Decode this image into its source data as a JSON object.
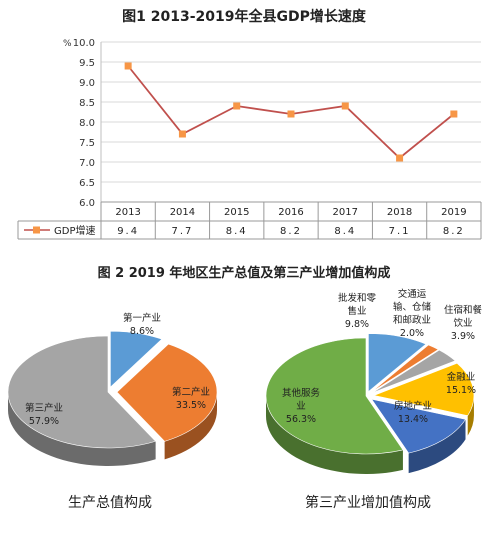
{
  "figure1": {
    "title": "图1   2013-2019年全县GDP增长速度",
    "unit": "%",
    "chart_data": {
      "type": "line",
      "categories": [
        "2013",
        "2014",
        "2015",
        "2016",
        "2017",
        "2018",
        "2019"
      ],
      "series": [
        {
          "name": "GDP增速",
          "values": [
            9.4,
            7.7,
            8.4,
            8.2,
            8.4,
            7.1,
            8.2
          ]
        }
      ],
      "value_labels": [
        "9.4",
        "7.7",
        "8.4",
        "8.2",
        "8.4",
        "7.1",
        "8.2"
      ],
      "ylim": [
        6.0,
        10.0
      ],
      "yticks": [
        6.0,
        6.5,
        7.0,
        7.5,
        8.0,
        8.5,
        9.0,
        9.5,
        10.0
      ],
      "ytick_labels": [
        "6.0",
        "6.5",
        "7.0",
        "7.5",
        "8.0",
        "8.5",
        "9.0",
        "9.5",
        "10.0"
      ],
      "line_color": "#c0504d",
      "marker_color": "#f79646"
    }
  },
  "figure2": {
    "title": "图 2    2019 年地区生产总值及第三产业增加值构成",
    "left": {
      "caption": "生产总值构成",
      "chart_data": {
        "type": "pie",
        "slices": [
          {
            "label": "第一产业",
            "pct": "8.6%",
            "value": 8.6,
            "color": "#5b9bd5"
          },
          {
            "label": "第二产业",
            "pct": "33.5%",
            "value": 33.5,
            "color": "#ed7d31"
          },
          {
            "label": "第三产业",
            "pct": "57.9%",
            "value": 57.9,
            "color": "#a5a5a5"
          }
        ]
      }
    },
    "right": {
      "caption": "第三产业增加值构成",
      "chart_data": {
        "type": "pie",
        "slices": [
          {
            "label": "批发和零售业",
            "pct": "9.8%",
            "value": 9.8,
            "color": "#5b9bd5"
          },
          {
            "label": "交通运输、仓储和邮政业",
            "pct": "2.0%",
            "value": 2.0,
            "color": "#ed7d31"
          },
          {
            "label": "住宿和餐饮业",
            "pct": "3.9%",
            "value": 3.9,
            "color": "#a5a5a5"
          },
          {
            "label": "金融业",
            "pct": "15.1%",
            "value": 15.1,
            "color": "#ffc000"
          },
          {
            "label": "房地产业",
            "pct": "13.4%",
            "value": 13.4,
            "color": "#4472c4"
          },
          {
            "label": "其他服务业",
            "pct": "56.3%",
            "value": 56.3,
            "color": "#70ad47"
          }
        ]
      }
    }
  }
}
